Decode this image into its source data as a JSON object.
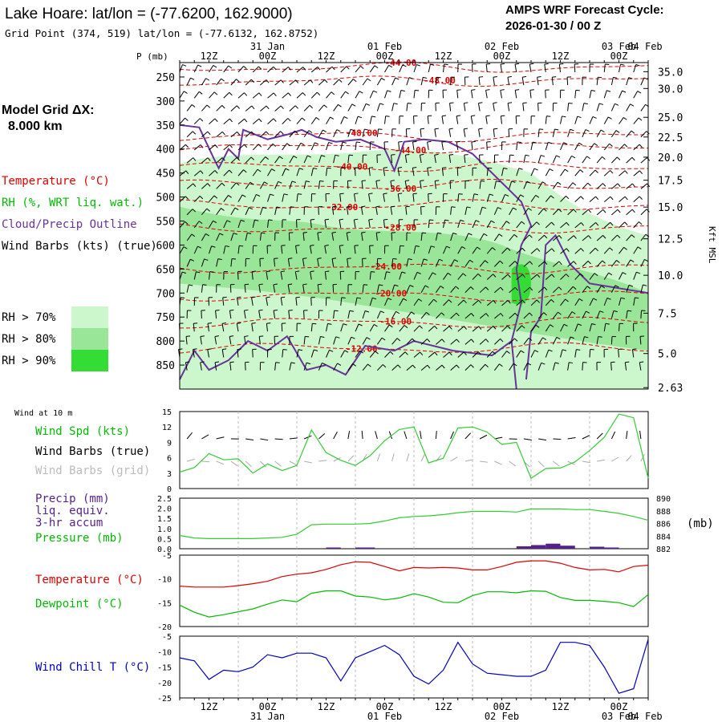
{
  "header": {
    "title": "Lake Hoare:  lat/lon = (-77.6200, 162.9000)",
    "grid_point": "Grid Point (374, 519) lat/lon = (-77.6132, 162.8752)",
    "cycle_label": "AMPS WRF Forecast Cycle:",
    "cycle_value": "2026-01-30 / 00  Z"
  },
  "left_panel": {
    "model_grid_label": "Model Grid ΔX:",
    "model_grid_value": "8.000 km",
    "legend_temperature": "Temperature (°C)",
    "legend_rh": "RH (%, WRT liq. wat.)",
    "legend_cloud": "Cloud/Precip Outline",
    "legend_wind": "Wind Barbs (kts) (true)",
    "rh_keys": [
      {
        "label": "RH > 70%",
        "color": "#ccf7cc"
      },
      {
        "label": "RH > 80%",
        "color": "#99e699"
      },
      {
        "label": "RH > 90%",
        "color": "#33dd33"
      }
    ],
    "wind_10m": "Wind at 10 m",
    "wind_spd": "Wind Spd (kts)",
    "wind_barbs_true": "Wind Barbs (true)",
    "wind_barbs_grid": "Wind Barbs (grid)",
    "precip_l1": "Precip (mm)",
    "precip_l2": "liq. equiv.",
    "precip_l3": "3-hr accum",
    "pressure": "Pressure (mb)",
    "temperature": "Temperature (°C)",
    "dewpoint": "Dewpoint (°C)",
    "wind_chill": "Wind Chill T (°C)"
  },
  "colors": {
    "temperature": "#dd0000",
    "dewpoint": "#00bb00",
    "green_line": "#33cc33",
    "cloud_outline": "#663399",
    "precip": "#552288",
    "wind_chill": "#0000bb",
    "rh70": "#ccf7cc",
    "rh80": "#99e699",
    "rh90": "#33dd33",
    "grid_barb": "#aaaaaa"
  },
  "time_axis": {
    "hour_labels": [
      "12Z",
      "00Z",
      "12Z",
      "00Z",
      "12Z",
      "00Z",
      "12Z",
      "00Z",
      "12Z",
      "00Z"
    ],
    "date_labels": [
      "31 Jan",
      "01 Feb",
      "02 Feb",
      "03 Feb",
      "04 Feb"
    ]
  },
  "chart_data": [
    {
      "type": "heatmap",
      "name": "time-height cross section",
      "ylabel_left": "P (mb)",
      "ylabel_right": "Kft MSL",
      "pressure_ticks": [
        "250",
        "300",
        "350",
        "400",
        "450",
        "500",
        "550",
        "600",
        "650",
        "700",
        "750",
        "800",
        "850"
      ],
      "height_ticks": [
        "35.0",
        "30.0",
        "25.0",
        "22.5",
        "20.0",
        "17.5",
        "15.0",
        "12.5",
        "10.0",
        "7.5",
        "5.0",
        "2.63"
      ],
      "height_tick_pressures": [
        239,
        274,
        334,
        375,
        417,
        465,
        521,
        587,
        663,
        742,
        826,
        897
      ],
      "ylim": [
        220,
        900
      ],
      "x_range_hours": [
        0,
        96
      ],
      "temperature_contours": [
        {
          "label": "-44.00",
          "p": 230,
          "label_hour": 42
        },
        {
          "label": "-48.00",
          "p": 258,
          "label_hour": 50
        },
        {
          "label": "-48.00",
          "p": 373,
          "label_hour": 34
        },
        {
          "label": "-44.00",
          "p": 397,
          "label_hour": 44
        },
        {
          "label": "-40.00",
          "p": 437,
          "label_hour": 32
        },
        {
          "label": "-36.00",
          "p": 475,
          "label_hour": 42
        },
        {
          "label": "-32.00",
          "p": 517,
          "label_hour": 30
        },
        {
          "label": "-28.00",
          "p": 564,
          "label_hour": 42
        },
        {
          "label": "-24.00",
          "p": 648,
          "label_hour": 39
        },
        {
          "label": "-20.00",
          "p": 705,
          "label_hour": 40
        },
        {
          "label": "-16.00",
          "p": 761,
          "label_hour": 41
        },
        {
          "label": "-12.00",
          "p": 815,
          "label_hour": 34
        }
      ]
    },
    {
      "type": "line",
      "name": "wind speed 10 m",
      "ylabel": "Wind Spd (kts)",
      "ylim": [
        0,
        15
      ],
      "yticks": [
        "0",
        "3",
        "6",
        "9",
        "12",
        "15"
      ],
      "x_hours": [
        0,
        3,
        6,
        9,
        12,
        15,
        18,
        21,
        24,
        27,
        30,
        33,
        36,
        39,
        42,
        45,
        48,
        51,
        54,
        57,
        60,
        63,
        66,
        69,
        72,
        75,
        78,
        81,
        84,
        87,
        90,
        93,
        96
      ],
      "values": [
        3.2,
        4.1,
        6.8,
        5.6,
        5.8,
        3.0,
        4.8,
        3.5,
        4.5,
        11.4,
        7.0,
        5.5,
        4.5,
        6.4,
        9.3,
        11.5,
        12.0,
        5.0,
        5.9,
        11.8,
        12.0,
        11.0,
        8.6,
        9.0,
        2.0,
        3.9,
        4.0,
        5.2,
        7.4,
        10.0,
        14.5,
        13.8,
        2.0
      ]
    },
    {
      "type": "line",
      "name": "pressure and precip",
      "ylabel_left": "Precip (mm) liq. equiv. 3-hr accum",
      "ylabel_right": "(mb)",
      "ylim_left": [
        0,
        2.5
      ],
      "yticks_left": [
        "0.0",
        "0.5",
        "1.0",
        "1.5",
        "2.0",
        "2.5"
      ],
      "ylim_right": [
        882,
        890
      ],
      "yticks_right": [
        "882",
        "884",
        "886",
        "888",
        "890"
      ],
      "x_hours": [
        0,
        3,
        6,
        9,
        12,
        15,
        18,
        21,
        24,
        27,
        30,
        33,
        36,
        39,
        42,
        45,
        48,
        51,
        54,
        57,
        60,
        63,
        66,
        69,
        72,
        75,
        78,
        81,
        84,
        87,
        90,
        93,
        96
      ],
      "pressure": [
        884.1,
        883.7,
        883.6,
        883.6,
        883.6,
        883.6,
        883.7,
        883.8,
        884.3,
        885.8,
        885.9,
        885.9,
        885.9,
        886.0,
        886.4,
        886.9,
        887.1,
        887.2,
        887.4,
        887.7,
        887.9,
        887.9,
        887.9,
        887.8,
        888.3,
        888.3,
        888.3,
        888.2,
        888.2,
        887.9,
        887.6,
        887.1,
        886.5
      ],
      "precip_bars": [
        {
          "x_start": 30,
          "x_end": 33,
          "value": 0.06
        },
        {
          "x_start": 36,
          "x_end": 40,
          "value": 0.06
        },
        {
          "x_start": 69,
          "x_end": 72,
          "value": 0.12
        },
        {
          "x_start": 72,
          "x_end": 75,
          "value": 0.18
        },
        {
          "x_start": 75,
          "x_end": 78,
          "value": 0.25
        },
        {
          "x_start": 78,
          "x_end": 81,
          "value": 0.15
        },
        {
          "x_start": 84,
          "x_end": 87,
          "value": 0.1
        },
        {
          "x_start": 87,
          "x_end": 90,
          "value": 0.06
        }
      ]
    },
    {
      "type": "line",
      "name": "temperature and dewpoint",
      "ylim": [
        -20,
        -5
      ],
      "yticks": [
        "-5",
        "-10",
        "-15",
        "-20"
      ],
      "x_hours": [
        0,
        3,
        6,
        9,
        12,
        15,
        18,
        21,
        24,
        27,
        30,
        33,
        36,
        39,
        42,
        45,
        48,
        51,
        54,
        57,
        60,
        63,
        66,
        69,
        72,
        75,
        78,
        81,
        84,
        87,
        90,
        93,
        96
      ],
      "series": [
        {
          "name": "Temperature (°C)",
          "values": [
            -11.5,
            -11.7,
            -11.7,
            -11.7,
            -11.4,
            -11.0,
            -10.5,
            -9.5,
            -9.0,
            -8.7,
            -8.0,
            -7.0,
            -6.4,
            -6.5,
            -7.4,
            -8.3,
            -7.6,
            -7.7,
            -7.6,
            -7.7,
            -8.1,
            -8.1,
            -7.4,
            -6.5,
            -6.2,
            -6.2,
            -6.7,
            -7.6,
            -8.1,
            -8.0,
            -8.5,
            -7.4,
            -7.1
          ]
        },
        {
          "name": "Dewpoint (°C)",
          "values": [
            -15.5,
            -17.0,
            -18.0,
            -17.5,
            -16.9,
            -16.3,
            -15.3,
            -14.4,
            -14.8,
            -13.0,
            -12.5,
            -12.5,
            -13.6,
            -13.8,
            -14.4,
            -14.0,
            -13.1,
            -13.8,
            -14.9,
            -15.0,
            -13.5,
            -12.7,
            -12.7,
            -12.9,
            -12.5,
            -12.6,
            -13.9,
            -14.5,
            -14.5,
            -14.7,
            -15.0,
            -15.8,
            -13.3
          ]
        }
      ]
    },
    {
      "type": "line",
      "name": "wind chill",
      "ylabel": "Wind Chill T (°C)",
      "ylim": [
        -25,
        -5
      ],
      "yticks": [
        "-5",
        "-10",
        "-15",
        "-20",
        "-25"
      ],
      "x_hours": [
        0,
        3,
        6,
        9,
        12,
        15,
        18,
        21,
        24,
        27,
        30,
        33,
        36,
        39,
        42,
        45,
        48,
        51,
        54,
        57,
        60,
        63,
        66,
        69,
        72,
        75,
        78,
        81,
        84,
        87,
        90,
        93,
        96
      ],
      "values": [
        -12.0,
        -13.0,
        -19.0,
        -16.0,
        -16.5,
        -15.0,
        -11.0,
        -12.0,
        -10.5,
        -10.5,
        -12.0,
        -19.5,
        -12.0,
        -10.0,
        -8.0,
        -11.0,
        -18.0,
        -20.5,
        -16.0,
        -7.0,
        -14.0,
        -17.0,
        -17.5,
        -18.0,
        -18.0,
        -16.0,
        -7.0,
        -7.0,
        -8.0,
        -15.0,
        -23.5,
        -22.0,
        -6.0
      ]
    }
  ]
}
